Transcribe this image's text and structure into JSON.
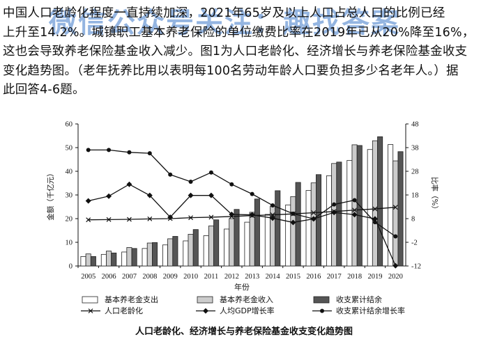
{
  "paragraph": {
    "line1": "中国人口老龄化程度一直持续加深，2021年65岁及以上人口占总人口的比例已经",
    "line2": "上升至14.2%。城镇职工基本养老保险的单位缴费比率在2019年已从20%降至16%，",
    "line3": "这也会导致养老保险基金收入减少。图1为人口老龄化、经济增长与养老保险基金收支",
    "line4": "变化趋势图。（老年抚养比用以表明每100名劳动年龄人口要负担多少名老年人。）据",
    "line5": "此回答4-6题。"
  },
  "watermark": "微信公众号关注：趣找答案",
  "caption": "人口老龄化、经济增长与养老保险基金收支变化趋势图",
  "colors": {
    "expense": "#ffffff",
    "income": "#cccccc",
    "surplus": "#555555",
    "line": "#111111"
  },
  "chart_data": {
    "type": "bar",
    "categories": [
      "2005",
      "2006",
      "2007",
      "2008",
      "2009",
      "2010",
      "2011",
      "2012",
      "2013",
      "2014",
      "2015",
      "2016",
      "2017",
      "2018",
      "2019",
      "2020"
    ],
    "xlabel": "年份",
    "ylabel_left": "金额（千亿元）",
    "ylabel_right": "比率（%）",
    "ylim_left": [
      0,
      60
    ],
    "yticks_left": [
      "0",
      "10",
      "20",
      "30",
      "40",
      "50",
      "60"
    ],
    "ylim_right": [
      -12,
      48
    ],
    "yticks_right": [
      "-12",
      "-2",
      "8",
      "18",
      "28",
      "38",
      "48"
    ],
    "series": [
      {
        "name": "基本养老金支出",
        "kind": "bar",
        "axis": "left",
        "values": [
          4.0,
          4.9,
          5.9,
          7.4,
          8.9,
          10.6,
          12.8,
          15.6,
          18.5,
          21.8,
          25.8,
          31.9,
          38.1,
          44.6,
          49.2,
          51.3
        ]
      },
      {
        "name": "基本养老金收入",
        "kind": "bar",
        "axis": "left",
        "values": [
          5.1,
          6.3,
          7.8,
          9.7,
          11.5,
          13.4,
          16.9,
          20.0,
          22.7,
          25.3,
          29.3,
          35.1,
          43.3,
          51.2,
          52.9,
          44.4
        ]
      },
      {
        "name": "收支累计结余",
        "kind": "bar",
        "axis": "left",
        "values": [
          4.0,
          5.5,
          7.4,
          9.9,
          12.5,
          15.4,
          19.5,
          23.9,
          28.3,
          31.8,
          35.3,
          38.6,
          43.9,
          50.9,
          54.6,
          48.3
        ]
      },
      {
        "name": "人口老龄化",
        "kind": "line",
        "axis": "left",
        "marker": "x",
        "values": [
          19.5,
          19.6,
          19.7,
          19.9,
          20.0,
          20.4,
          20.6,
          20.9,
          21.3,
          21.6,
          22.0,
          22.5,
          23.0,
          23.6,
          24.1,
          24.8
        ]
      },
      {
        "name": "人均GDP增长率",
        "kind": "line",
        "axis": "right",
        "marker": "diamond",
        "values": [
          15.5,
          17.5,
          22.5,
          17.8,
          8.6,
          17.8,
          17.8,
          9.8,
          9.6,
          8.2,
          6.4,
          7.9,
          10.6,
          9.7,
          7.9,
          -11.9
        ]
      },
      {
        "name": "收支累计结余增长率",
        "kind": "line",
        "axis": "right",
        "marker": "circle",
        "values": [
          37.0,
          37.0,
          36.0,
          35.6,
          26.6,
          23.6,
          27.5,
          22.5,
          18.4,
          13.6,
          10.1,
          7.9,
          14.0,
          15.8,
          6.5,
          0.5
        ]
      }
    ],
    "legend": [
      "基本养老金支出",
      "基本养老金收入",
      "收支累计结余",
      "人口老龄化",
      "人均GDP增长率",
      "收支累计结余增长率"
    ],
    "grid": false,
    "legend_position": "bottom"
  }
}
